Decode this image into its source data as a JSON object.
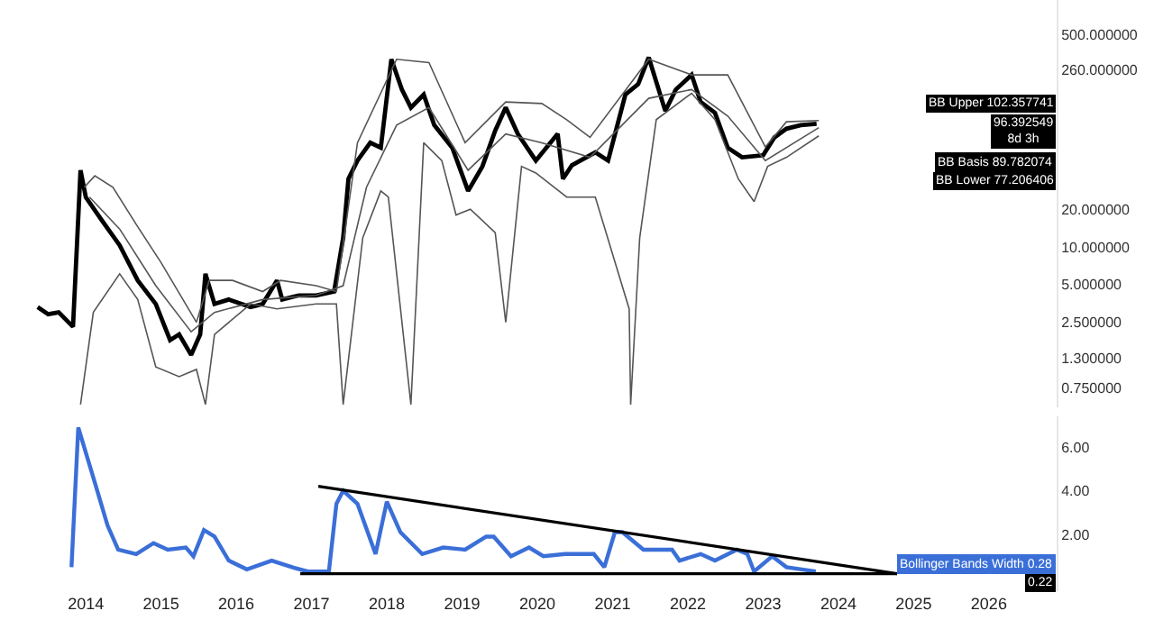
{
  "chart_data": [
    {
      "type": "line",
      "log": "y",
      "tick_labels": "y",
      "marker": "none",
      "line_style": "solid",
      "xlim": [
        2012.86,
        2026.9
      ],
      "ylim": [
        0.52,
        940
      ],
      "yticks": [
        {
          "value": 0.75,
          "label": "0.750000"
        },
        {
          "value": 1.3,
          "label": "1.300000"
        },
        {
          "value": 2.5,
          "label": "2.500000"
        },
        {
          "value": 5,
          "label": "5.000000"
        },
        {
          "value": 10,
          "label": "10.000000"
        },
        {
          "value": 20,
          "label": "20.000000"
        },
        {
          "value": 260,
          "label": "260.000000"
        },
        {
          "value": 500,
          "label": "500.000000"
        }
      ],
      "series": [
        {
          "color": "#000000",
          "x": [
            2013.36,
            2013.5,
            2013.64,
            2013.83,
            2013.93,
            2014.0,
            2014.21,
            2014.45,
            2014.69,
            2014.93,
            2015.12,
            2015.24,
            2015.4,
            2015.52,
            2015.59,
            2015.71,
            2015.9,
            2016.19,
            2016.35,
            2016.54,
            2016.61,
            2016.83,
            2017.06,
            2017.3,
            2017.42,
            2017.49,
            2017.61,
            2017.78,
            2017.92,
            2018.06,
            2018.2,
            2018.32,
            2018.49,
            2018.63,
            2018.87,
            2019.08,
            2019.27,
            2019.44,
            2019.58,
            2019.74,
            2019.98,
            2020.27,
            2020.34,
            2020.46,
            2020.77,
            2020.94,
            2021.17,
            2021.34,
            2021.48,
            2021.7,
            2021.84,
            2022.05,
            2022.17,
            2022.36,
            2022.53,
            2022.72,
            2023.0,
            2023.15,
            2023.31,
            2023.5,
            2023.71
          ],
          "values": [
            3.3,
            2.9,
            3.0,
            2.3,
            41,
            25,
            16.4,
            10.3,
            5.4,
            3.5,
            1.8,
            2.0,
            1.37,
            2.0,
            6.1,
            3.5,
            3.8,
            3.3,
            3.5,
            5.4,
            3.8,
            4.1,
            4.1,
            4.4,
            11.8,
            35,
            49,
            68,
            62,
            316,
            181,
            130,
            165,
            94,
            62,
            28,
            44,
            85,
            130,
            80,
            49,
            80,
            35,
            45,
            57,
            49,
            165,
            200,
            327,
            122,
            181,
            237,
            144,
            118,
            62,
            52,
            54,
            75,
            88,
            94,
            96.392549
          ]
        },
        {
          "color": "#555555",
          "x": [
            2013.98,
            2014.12,
            2014.36,
            2014.69,
            2015.0,
            2015.47,
            2015.64,
            2015.95,
            2016.35,
            2016.59,
            2017.06,
            2017.33,
            2017.61,
            2018.13,
            2018.56,
            2019.04,
            2019.58,
            2020.06,
            2020.39,
            2020.7,
            2021.48,
            2022.05,
            2022.53,
            2023.03,
            2023.31,
            2023.74
          ],
          "values": [
            30,
            37,
            30,
            14.5,
            7.5,
            2.5,
            5.4,
            5.4,
            4.4,
            5.4,
            4.9,
            4.4,
            68,
            316,
            297,
            68,
            144,
            140,
            104,
            75,
            316,
            237,
            237,
            63,
            100,
            102.357741
          ]
        },
        {
          "color": "#555555",
          "x": [
            2014.05,
            2014.45,
            2014.93,
            2015.4,
            2015.71,
            2016.35,
            2017.06,
            2017.42,
            2017.73,
            2018.13,
            2018.56,
            2019.08,
            2019.58,
            2020.06,
            2020.7,
            2021.48,
            2022.05,
            2022.53,
            2023.03,
            2023.74
          ],
          "values": [
            25,
            13.9,
            4.9,
            2.1,
            3.0,
            3.8,
            4.1,
            4.9,
            30,
            94,
            130,
            41,
            80,
            68,
            52,
            154,
            181,
            111,
            49,
            89.782074
          ]
        },
        {
          "color": "#555555",
          "x": [
            2013.93,
            2014.1,
            2014.45,
            2014.69,
            2014.93,
            2015.24,
            2015.47,
            2015.59,
            2015.71,
            2016.19,
            2016.54,
            2017.06,
            2017.33,
            2017.42,
            2017.68,
            2017.92,
            2018.02,
            2018.32,
            2018.49,
            2018.73,
            2018.92,
            2019.11,
            2019.44,
            2019.58,
            2019.79,
            2019.98,
            2020.39,
            2020.77,
            2021.22,
            2021.24,
            2021.36,
            2021.58,
            2022.05,
            2022.36,
            2022.67,
            2022.88,
            2023.06,
            2023.31,
            2023.74
          ],
          "values": [
            0.55,
            3.0,
            6.1,
            3.8,
            1.1,
            0.92,
            1.05,
            0.55,
            2.0,
            3.5,
            3.2,
            3.5,
            3.5,
            0.55,
            11.8,
            28,
            25,
            0.55,
            68,
            49,
            18,
            20,
            13,
            2.5,
            44,
            39,
            25,
            25,
            3.2,
            0.55,
            11.8,
            104,
            169,
            104,
            35,
            23,
            44,
            52,
            77.206406
          ]
        }
      ],
      "annotations": [
        "BB Upper 102.357741",
        "96.392549\n8d 3h",
        "BB Basis 89.782074",
        "BB Lower 77.206406"
      ]
    },
    {
      "type": "line",
      "marker": "none",
      "line_style": "solid",
      "xlim": [
        2012.86,
        2026.9
      ],
      "ylim": [
        -0.6,
        7.4
      ],
      "xticks": [
        2014,
        2015,
        2016,
        2017,
        2018,
        2019,
        2020,
        2021,
        2022,
        2023,
        2024,
        2025,
        2026
      ],
      "yticks": [
        {
          "value": 2,
          "label": "2.00"
        },
        {
          "value": 4,
          "label": "4.00"
        },
        {
          "value": 6,
          "label": "6.00"
        }
      ],
      "series": [
        {
          "color": "#3b6fd8",
          "x": [
            2013.81,
            2013.9,
            2014.1,
            2014.29,
            2014.43,
            2014.67,
            2014.9,
            2015.09,
            2015.33,
            2015.43,
            2015.57,
            2015.71,
            2015.9,
            2016.14,
            2016.47,
            2016.76,
            2016.95,
            2017.23,
            2017.33,
            2017.42,
            2017.61,
            2017.85,
            2018.0,
            2018.18,
            2018.47,
            2018.75,
            2019.04,
            2019.32,
            2019.42,
            2019.65,
            2019.89,
            2020.08,
            2020.37,
            2020.75,
            2020.89,
            2021.03,
            2021.13,
            2021.41,
            2021.79,
            2021.89,
            2022.17,
            2022.36,
            2022.65,
            2022.79,
            2022.88,
            2023.12,
            2023.31,
            2023.7
          ],
          "values": [
            0.5,
            6.9,
            4.6,
            2.4,
            1.3,
            1.1,
            1.6,
            1.3,
            1.4,
            1.0,
            2.2,
            1.9,
            0.8,
            0.4,
            0.8,
            0.48,
            0.3,
            0.3,
            3.4,
            4.0,
            3.4,
            1.1,
            3.5,
            2.1,
            1.1,
            1.4,
            1.3,
            1.9,
            1.9,
            1.0,
            1.4,
            1.0,
            1.1,
            1.1,
            0.5,
            2.1,
            2.1,
            1.3,
            1.3,
            0.8,
            1.1,
            0.8,
            1.3,
            1.1,
            0.3,
            1.0,
            0.5,
            0.3
          ]
        },
        {
          "color": "#000000",
          "x": [
            2017.09,
            2024.78
          ],
          "values": [
            4.2,
            0.2
          ]
        },
        {
          "color": "#000000",
          "x": [
            2016.85,
            2024.78
          ],
          "values": [
            0.2,
            0.2
          ]
        }
      ],
      "annotations": [
        "Bollinger Bands Width 0.28",
        "0.22"
      ]
    }
  ]
}
